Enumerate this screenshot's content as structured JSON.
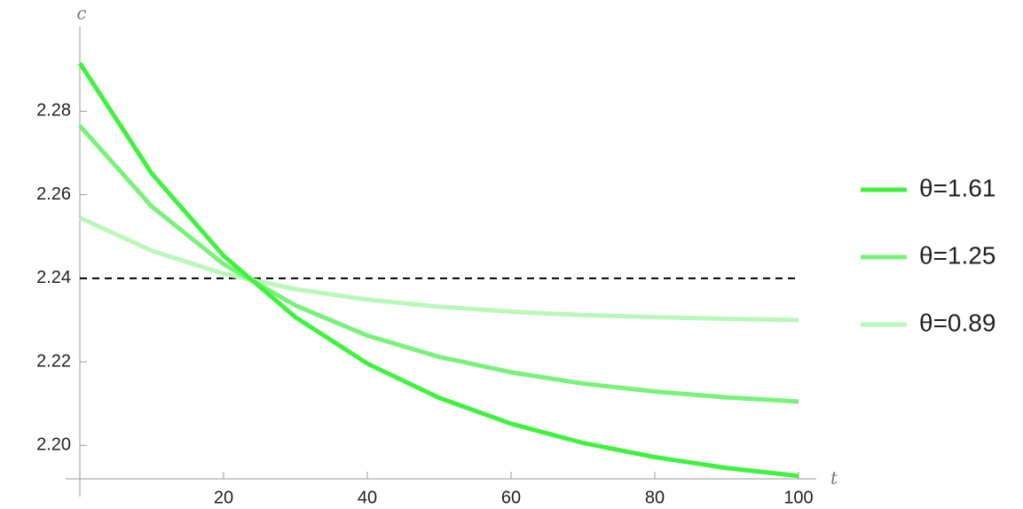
{
  "chart_data": {
    "type": "line",
    "x_label": "t",
    "y_label": "c",
    "x": [
      0,
      10,
      20,
      30,
      40,
      50,
      60,
      70,
      80,
      90,
      100
    ],
    "series": [
      {
        "name": "θ=1.61",
        "color": "#3ef23e",
        "values": [
          2.2915,
          2.2651,
          2.2454,
          2.2307,
          2.2196,
          2.2114,
          2.2052,
          2.2006,
          2.1972,
          2.1946,
          2.1927
        ]
      },
      {
        "name": "θ=1.25",
        "color": "#78f278",
        "values": [
          2.2765,
          2.2572,
          2.2434,
          2.2335,
          2.2263,
          2.2212,
          2.2175,
          2.2148,
          2.2129,
          2.2115,
          2.2105
        ]
      },
      {
        "name": "θ=0.89",
        "color": "#b9f8b9",
        "values": [
          2.2545,
          2.2466,
          2.2411,
          2.2374,
          2.2349,
          2.2332,
          2.232,
          2.2312,
          2.2307,
          2.2303,
          2.23
        ]
      }
    ],
    "reference_line": {
      "y": 2.24,
      "color": "#000000",
      "dashed": true
    },
    "xlim": [
      0,
      100
    ],
    "ylim": [
      2.192,
      2.296
    ],
    "xticks": [
      20,
      40,
      60,
      80,
      100
    ],
    "yticks": [
      {
        "value": 2.2,
        "label": "2.20"
      },
      2.22,
      2.24,
      2.26,
      2.28
    ],
    "legend": "right"
  }
}
